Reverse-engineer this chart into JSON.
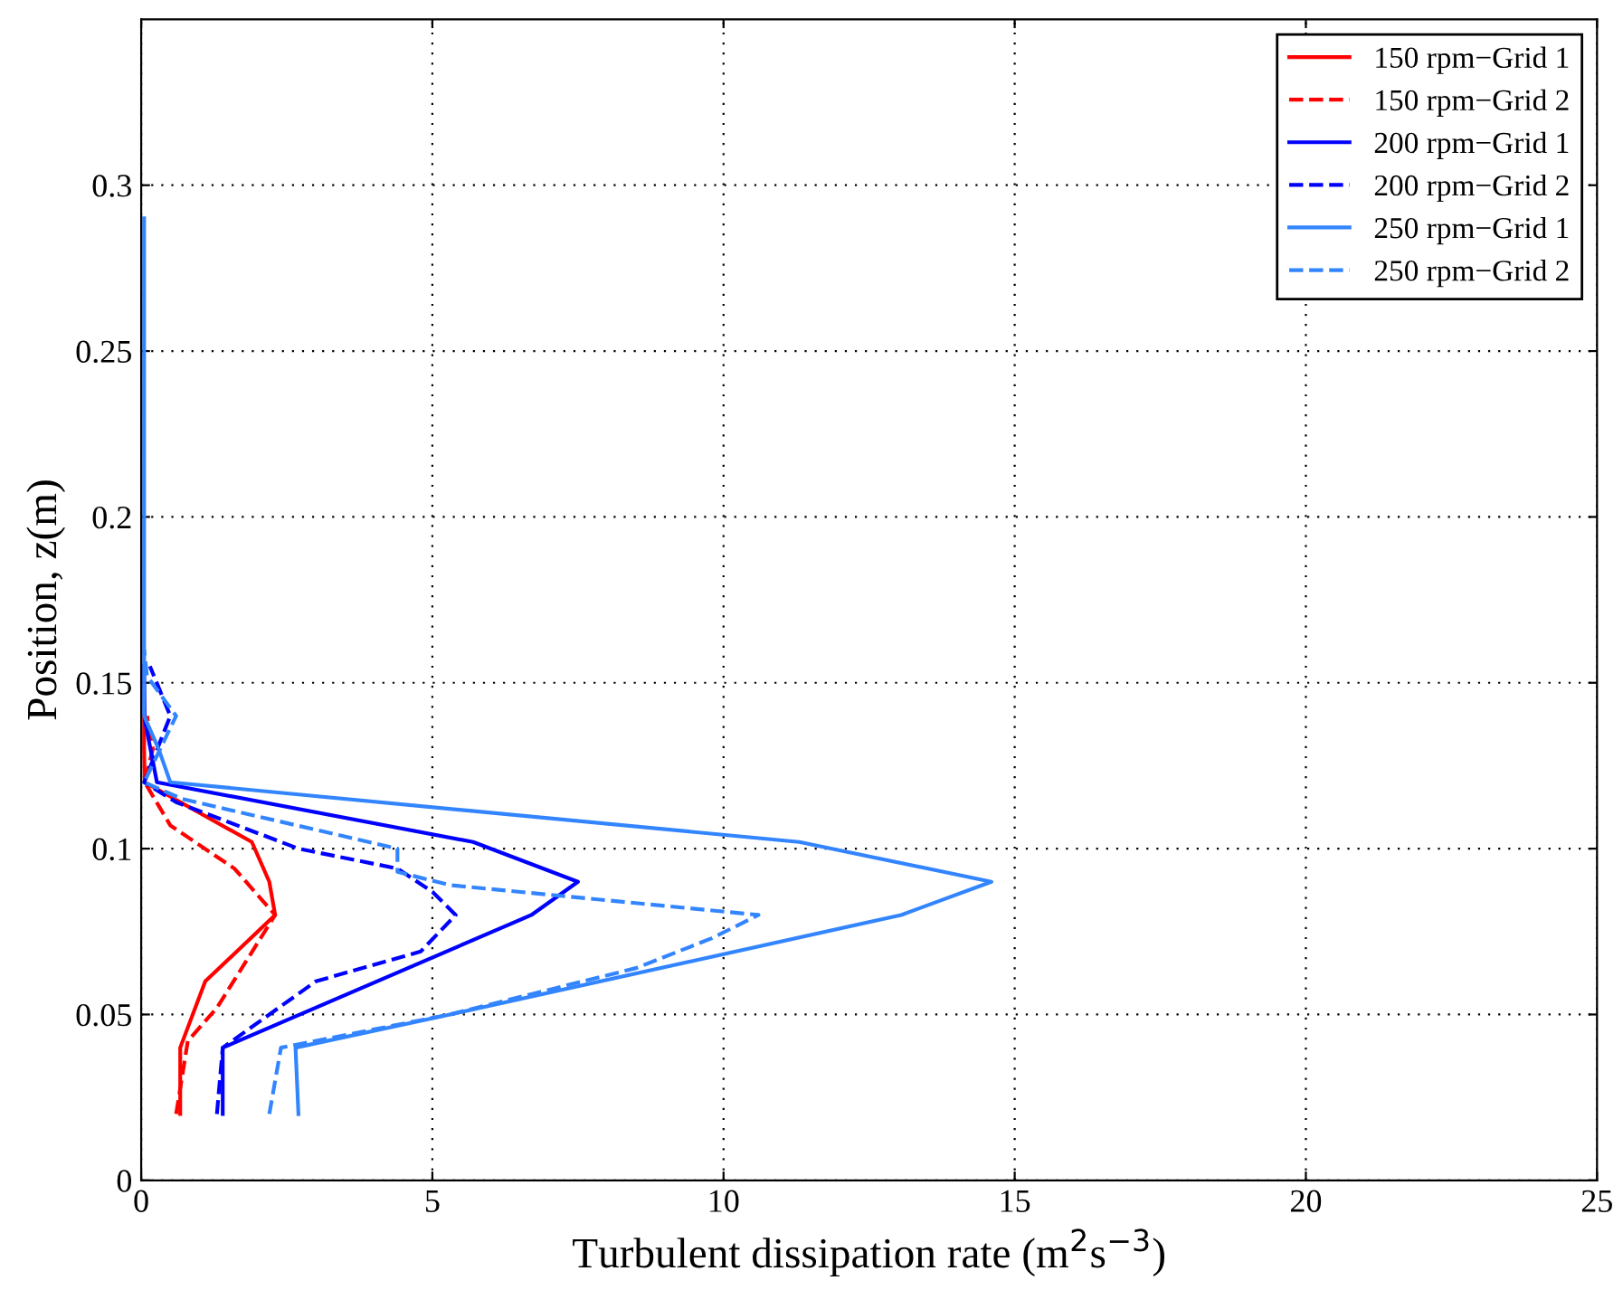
{
  "chart_data": {
    "type": "line",
    "xlabel": "Turbulent dissipation rate (m$^{2}$s$^{−3}$)",
    "ylabel": "Position, z(m)",
    "xlim": [
      0,
      25
    ],
    "xticks": [
      0,
      5,
      10,
      15,
      20,
      25
    ],
    "ylim": [
      0,
      0.35
    ],
    "yticks": [
      0,
      0.05,
      0.1,
      0.15,
      0.2,
      0.25,
      0.3
    ],
    "grid": true,
    "legend": "top right",
    "series": [
      {
        "name": "150 rpm−Grid 1",
        "color": "#ff0000",
        "line_style": "solid",
        "x": [
          0.67,
          0.67,
          1.1,
          2.3,
          2.2,
          1.9,
          0.06,
          0.05,
          0.05
        ],
        "values": [
          0.02,
          0.04,
          0.06,
          0.08,
          0.09,
          0.102,
          0.12,
          0.13,
          0.14
        ]
      },
      {
        "name": "150 rpm−Grid 2",
        "color": "#ff0000",
        "line_style": "dashed",
        "x": [
          0.6,
          0.8,
          1.3,
          2.3,
          1.6,
          0.5,
          0.06,
          0.2,
          0.1
        ],
        "values": [
          0.02,
          0.042,
          0.052,
          0.08,
          0.094,
          0.107,
          0.12,
          0.13,
          0.14
        ]
      },
      {
        "name": "200 rpm−Grid 1",
        "color": "#0000ff",
        "line_style": "solid",
        "x": [
          1.4,
          1.4,
          6.7,
          7.5,
          5.7,
          0.27,
          0.06,
          0.05
        ],
        "values": [
          0.02,
          0.04,
          0.08,
          0.09,
          0.102,
          0.12,
          0.139,
          0.155
        ]
      },
      {
        "name": "200 rpm−Grid 2",
        "color": "#0000ff",
        "line_style": "dashed",
        "x": [
          1.3,
          1.4,
          3,
          4.8,
          5.4,
          5,
          4.4,
          2.7,
          0.6,
          0.05,
          0.5,
          0.15
        ],
        "values": [
          0.02,
          0.04,
          0.06,
          0.069,
          0.08,
          0.087,
          0.094,
          0.1,
          0.114,
          0.12,
          0.14,
          0.155
        ]
      },
      {
        "name": "250 rpm−Grid 1",
        "color": "#3385ff",
        "line_style": "solid",
        "x": [
          2.7,
          2.65,
          5.3,
          13.05,
          14.6,
          11.3,
          0.5,
          0.3,
          0.05,
          0.05
        ],
        "values": [
          0.02,
          0.04,
          0.05,
          0.08,
          0.09,
          0.102,
          0.12,
          0.13,
          0.14,
          0.29
        ]
      },
      {
        "name": "250 rpm−Grid 2",
        "color": "#3385ff",
        "line_style": "dashed",
        "x": [
          2.2,
          2.4,
          5.3,
          8.5,
          9.8,
          10.6,
          5.3,
          4.4,
          4.4,
          0.7,
          0.05,
          0.6,
          0.1,
          0.05
        ],
        "values": [
          0.02,
          0.04,
          0.05,
          0.064,
          0.073,
          0.08,
          0.089,
          0.093,
          0.1,
          0.115,
          0.12,
          0.14,
          0.152,
          0.16
        ]
      }
    ]
  }
}
